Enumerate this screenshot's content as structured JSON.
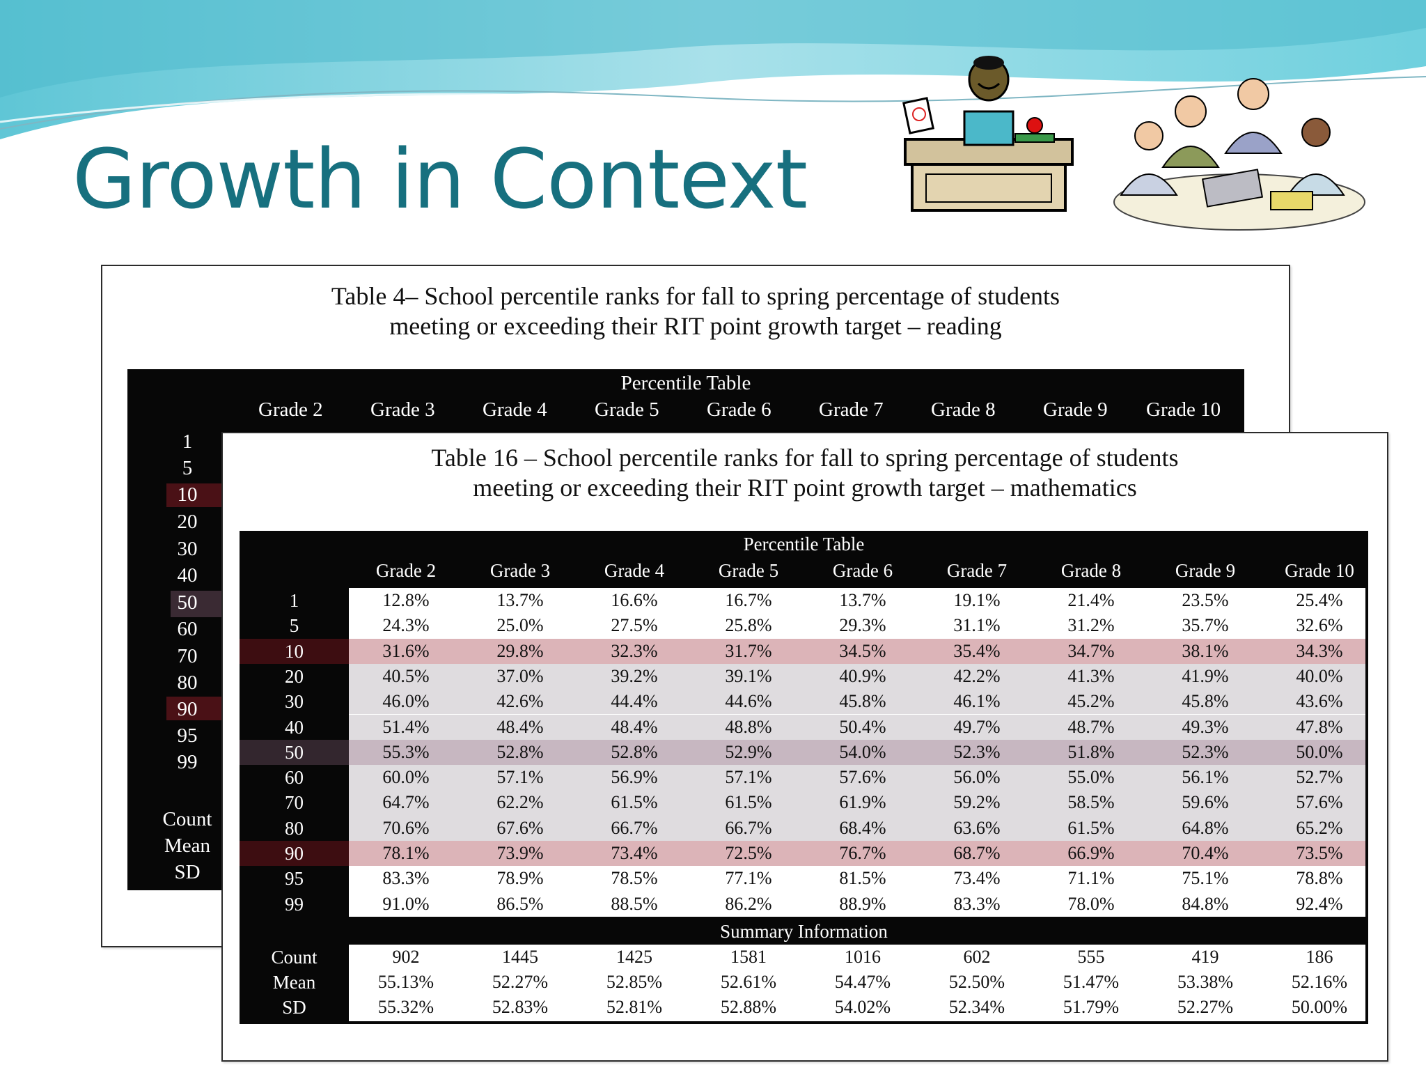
{
  "slide": {
    "title": "Growth in Context"
  },
  "reading_table": {
    "caption_line1": "Table 4– School percentile ranks for fall to spring percentage of students",
    "caption_line2": "meeting or exceeding their RIT point growth target – reading",
    "header": "Percentile Table",
    "grades": [
      "Grade 2",
      "Grade 3",
      "Grade 4",
      "Grade 5",
      "Grade 6",
      "Grade 7",
      "Grade 8",
      "Grade 9",
      "Grade 10"
    ],
    "percentiles": [
      "1",
      "5",
      "10",
      "20",
      "30",
      "40",
      "50",
      "60",
      "70",
      "80",
      "90",
      "95",
      "99"
    ],
    "summary_labels": [
      "Count",
      "Mean",
      "SD"
    ]
  },
  "math_table": {
    "caption_line1": "Table 16 – School percentile ranks for fall to spring percentage of students",
    "caption_line2": "meeting or exceeding their RIT point growth target – mathematics",
    "header": "Percentile Table",
    "grades": [
      "Grade 2",
      "Grade 3",
      "Grade 4",
      "Grade 5",
      "Grade 6",
      "Grade 7",
      "Grade 8",
      "Grade 9",
      "Grade 10"
    ],
    "rows": [
      {
        "p": "1",
        "values": [
          "12.8%",
          "13.7%",
          "16.6%",
          "16.7%",
          "13.7%",
          "19.1%",
          "21.4%",
          "23.5%",
          "25.4%"
        ]
      },
      {
        "p": "5",
        "values": [
          "24.3%",
          "25.0%",
          "27.5%",
          "25.8%",
          "29.3%",
          "31.1%",
          "31.2%",
          "35.7%",
          "32.6%"
        ]
      },
      {
        "p": "10",
        "values": [
          "31.6%",
          "29.8%",
          "32.3%",
          "31.7%",
          "34.5%",
          "35.4%",
          "34.7%",
          "38.1%",
          "34.3%"
        ]
      },
      {
        "p": "20",
        "values": [
          "40.5%",
          "37.0%",
          "39.2%",
          "39.1%",
          "40.9%",
          "42.2%",
          "41.3%",
          "41.9%",
          "40.0%"
        ]
      },
      {
        "p": "30",
        "values": [
          "46.0%",
          "42.6%",
          "44.4%",
          "44.6%",
          "45.8%",
          "46.1%",
          "45.2%",
          "45.8%",
          "43.6%"
        ]
      },
      {
        "p": "40",
        "values": [
          "51.4%",
          "48.4%",
          "48.4%",
          "48.8%",
          "50.4%",
          "49.7%",
          "48.7%",
          "49.3%",
          "47.8%"
        ]
      },
      {
        "p": "50",
        "values": [
          "55.3%",
          "52.8%",
          "52.8%",
          "52.9%",
          "54.0%",
          "52.3%",
          "51.8%",
          "52.3%",
          "50.0%"
        ]
      },
      {
        "p": "60",
        "values": [
          "60.0%",
          "57.1%",
          "56.9%",
          "57.1%",
          "57.6%",
          "56.0%",
          "55.0%",
          "56.1%",
          "52.7%"
        ]
      },
      {
        "p": "70",
        "values": [
          "64.7%",
          "62.2%",
          "61.5%",
          "61.5%",
          "61.9%",
          "59.2%",
          "58.5%",
          "59.6%",
          "57.6%"
        ]
      },
      {
        "p": "80",
        "values": [
          "70.6%",
          "67.6%",
          "66.7%",
          "66.7%",
          "68.4%",
          "63.6%",
          "61.5%",
          "64.8%",
          "65.2%"
        ]
      },
      {
        "p": "90",
        "values": [
          "78.1%",
          "73.9%",
          "73.4%",
          "72.5%",
          "76.7%",
          "68.7%",
          "66.9%",
          "70.4%",
          "73.5%"
        ]
      },
      {
        "p": "95",
        "values": [
          "83.3%",
          "78.9%",
          "78.5%",
          "77.1%",
          "81.5%",
          "73.4%",
          "71.1%",
          "75.1%",
          "78.8%"
        ]
      },
      {
        "p": "99",
        "values": [
          "91.0%",
          "86.5%",
          "88.5%",
          "86.2%",
          "88.9%",
          "83.3%",
          "78.0%",
          "84.8%",
          "92.4%"
        ]
      }
    ],
    "summary_title": "Summary Information",
    "summary": [
      {
        "label": "Count",
        "values": [
          "902",
          "1445",
          "1425",
          "1581",
          "1016",
          "602",
          "555",
          "419",
          "186"
        ]
      },
      {
        "label": "Mean",
        "values": [
          "55.13%",
          "52.27%",
          "52.85%",
          "52.61%",
          "54.47%",
          "52.50%",
          "51.47%",
          "53.38%",
          "52.16%"
        ]
      },
      {
        "label": "SD",
        "values": [
          "55.32%",
          "52.83%",
          "52.81%",
          "52.88%",
          "54.02%",
          "52.34%",
          "51.79%",
          "52.27%",
          "50.00%"
        ]
      }
    ]
  },
  "colors": {
    "title": "#17707f",
    "band_light": "#dfdcdf",
    "band_10_90": "#dcb4b8",
    "band_50": "#c7b7c1",
    "table_bg": "#070707"
  }
}
